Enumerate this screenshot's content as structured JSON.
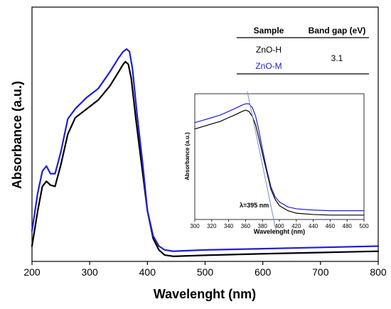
{
  "chart_data": [
    {
      "type": "line",
      "xlabel": "Wavelenght (nm)",
      "ylabel": "Absorbance (a.u.)",
      "xlim": [
        200,
        800
      ],
      "xticks": [
        "200",
        "300",
        "400",
        "500",
        "600",
        "700",
        "800"
      ],
      "ylim": [
        0,
        1
      ],
      "yticks_shown": false,
      "series": [
        {
          "name": "ZnO-H",
          "color": "#000000",
          "x": [
            200,
            210,
            218,
            225,
            232,
            240,
            250,
            262,
            275,
            295,
            315,
            335,
            350,
            358,
            362,
            367,
            372,
            380,
            390,
            400,
            410,
            420,
            430,
            445,
            500,
            600,
            700,
            800
          ],
          "y": [
            0.06,
            0.2,
            0.295,
            0.315,
            0.3,
            0.295,
            0.38,
            0.5,
            0.565,
            0.6,
            0.635,
            0.69,
            0.745,
            0.775,
            0.785,
            0.775,
            0.72,
            0.56,
            0.38,
            0.2,
            0.09,
            0.045,
            0.025,
            0.02,
            0.024,
            0.03,
            0.035,
            0.04
          ]
        },
        {
          "name": "ZnO-M",
          "color": "#1f1fd6",
          "x": [
            200,
            210,
            218,
            225,
            232,
            240,
            250,
            262,
            275,
            295,
            315,
            335,
            350,
            358,
            364,
            369,
            374,
            382,
            392,
            400,
            410,
            420,
            430,
            445,
            500,
            600,
            700,
            800
          ],
          "y": [
            0.12,
            0.27,
            0.355,
            0.375,
            0.345,
            0.345,
            0.43,
            0.56,
            0.6,
            0.645,
            0.68,
            0.745,
            0.8,
            0.825,
            0.835,
            0.825,
            0.76,
            0.58,
            0.38,
            0.2,
            0.1,
            0.06,
            0.045,
            0.04,
            0.045,
            0.05,
            0.055,
            0.06
          ]
        }
      ]
    },
    {
      "type": "line",
      "xlabel": "Wavelenght (nm)",
      "ylabel": "Absorbance (a.u.)",
      "xlim": [
        300,
        500
      ],
      "xticks": [
        "300",
        "320",
        "340",
        "360",
        "380",
        "400",
        "420",
        "440",
        "460",
        "480",
        "500"
      ],
      "ylim": [
        0,
        1
      ],
      "annotation": "λ=395 nm",
      "tangent_line": {
        "x": [
          362,
          397
        ],
        "y": [
          1.02,
          -0.12
        ]
      },
      "series": [
        {
          "name": "ZnO-H",
          "color": "#000000",
          "x": [
            300,
            310,
            320,
            330,
            340,
            350,
            356,
            360,
            364,
            368,
            372,
            376,
            380,
            385,
            390,
            395,
            400,
            410,
            420,
            440,
            460,
            480,
            500
          ],
          "y": [
            0.72,
            0.74,
            0.76,
            0.78,
            0.81,
            0.84,
            0.86,
            0.87,
            0.86,
            0.82,
            0.75,
            0.64,
            0.52,
            0.38,
            0.24,
            0.16,
            0.11,
            0.07,
            0.05,
            0.04,
            0.035,
            0.035,
            0.035
          ]
        },
        {
          "name": "ZnO-M",
          "color": "#1f1fd6",
          "x": [
            300,
            310,
            320,
            330,
            340,
            350,
            356,
            360,
            364,
            368,
            372,
            376,
            380,
            385,
            390,
            395,
            400,
            410,
            420,
            440,
            460,
            480,
            500
          ],
          "y": [
            0.77,
            0.79,
            0.81,
            0.83,
            0.86,
            0.89,
            0.91,
            0.92,
            0.92,
            0.89,
            0.82,
            0.7,
            0.56,
            0.4,
            0.26,
            0.18,
            0.14,
            0.1,
            0.085,
            0.075,
            0.07,
            0.07,
            0.07
          ]
        }
      ]
    }
  ],
  "table": {
    "headers": [
      "Sample",
      "Band gap (eV)"
    ],
    "rows": [
      "ZnO-H",
      "ZnO-M"
    ],
    "band_gap_value": "3.1",
    "row_colors": [
      "#000000",
      "#1f1fd6"
    ]
  }
}
